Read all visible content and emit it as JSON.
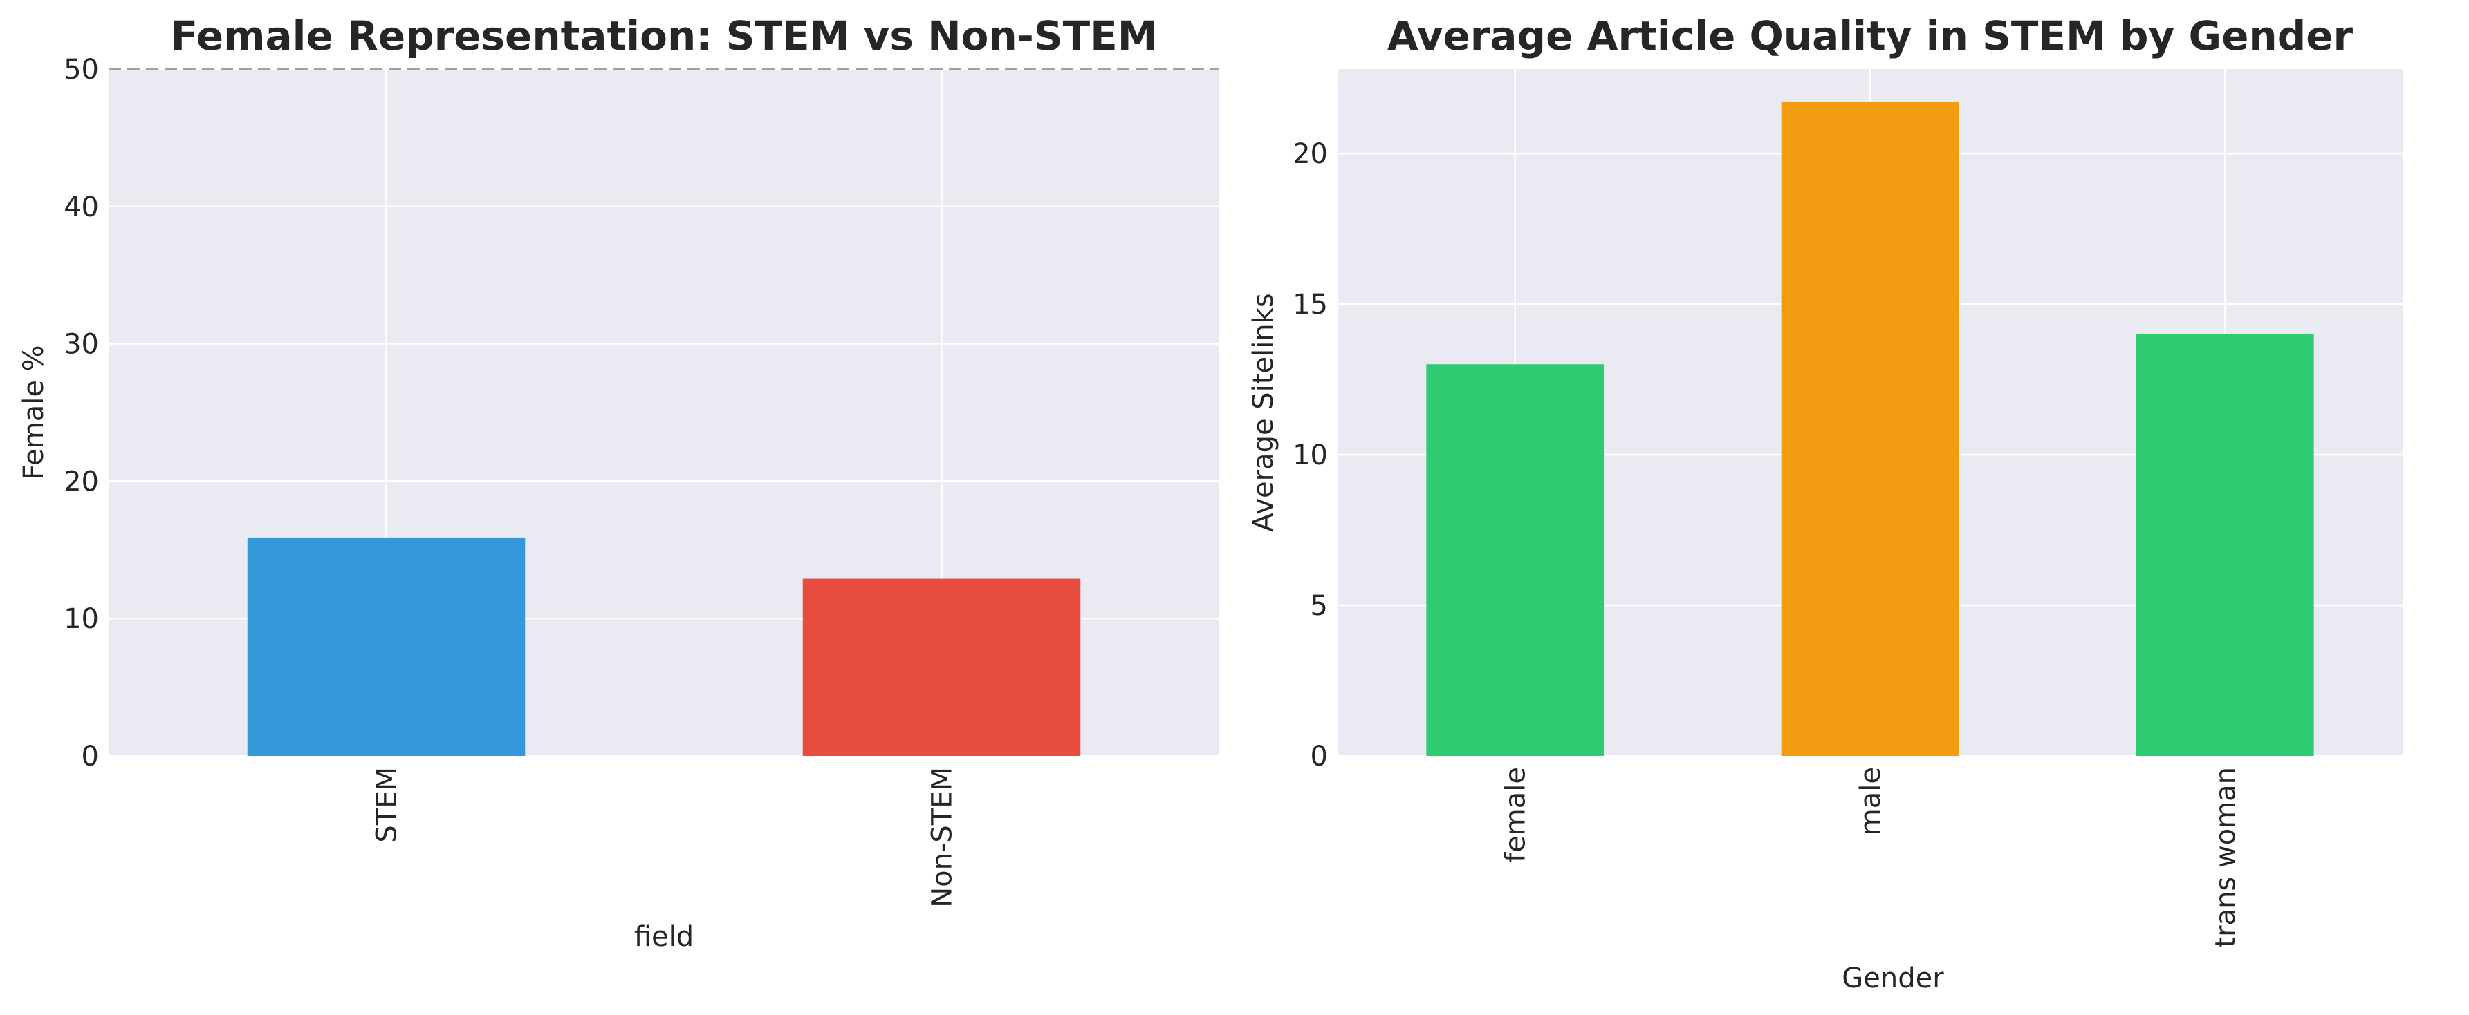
{
  "chart_data": [
    {
      "type": "bar",
      "title": "Female Representation: STEM vs Non-STEM",
      "xlabel": "field",
      "ylabel": "Female %",
      "categories": [
        "STEM",
        "Non-STEM"
      ],
      "values": [
        15.9,
        12.9
      ],
      "colors": [
        "#3498db",
        "#e74c3c"
      ],
      "ylim": [
        0,
        50
      ],
      "yticks": [
        0,
        10,
        20,
        30,
        40,
        50
      ],
      "reference_line": {
        "value": 50,
        "style": "dashed",
        "color": "#a0a0a8"
      },
      "grid": true
    },
    {
      "type": "bar",
      "title": "Average Article Quality in STEM by Gender",
      "xlabel": "Gender",
      "ylabel": "Average Sitelinks",
      "categories": [
        "female",
        "male",
        "trans woman"
      ],
      "values": [
        13.0,
        21.7,
        14.0
      ],
      "colors": [
        "#2ecc71",
        "#f39c12",
        "#2ecc71"
      ],
      "ylim": [
        0,
        22.8
      ],
      "yticks": [
        0,
        5,
        10,
        15,
        20
      ],
      "grid": true
    }
  ]
}
